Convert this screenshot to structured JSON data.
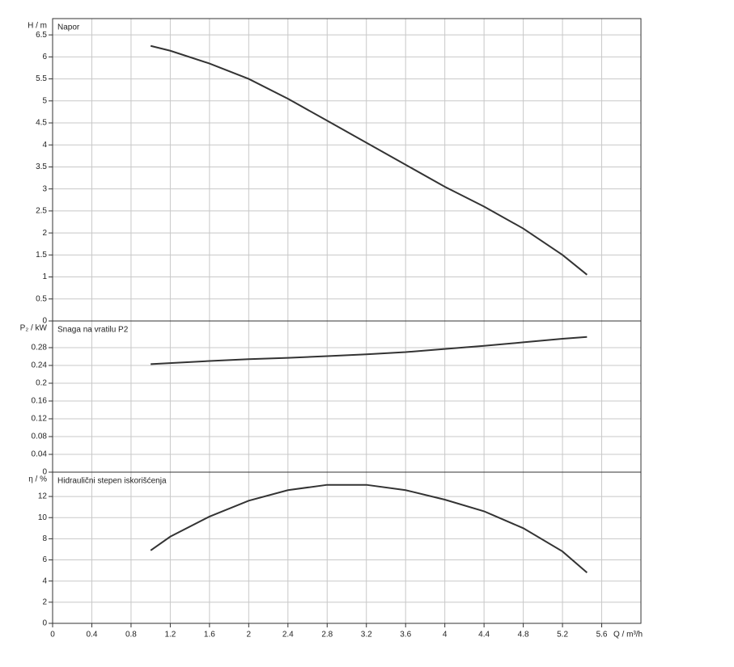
{
  "chart_data": [
    {
      "type": "line",
      "title": "Napor",
      "y_label": "H / m",
      "x": [
        1.0,
        1.2,
        1.6,
        2.0,
        2.4,
        2.8,
        3.2,
        3.6,
        4.0,
        4.4,
        4.8,
        5.2,
        5.45
      ],
      "series": [
        {
          "name": "Napor",
          "color": "#333333",
          "values": [
            6.25,
            6.14,
            5.85,
            5.5,
            5.05,
            4.55,
            4.05,
            3.55,
            3.05,
            2.6,
            2.1,
            1.5,
            1.05
          ]
        }
      ],
      "xlim": [
        0,
        6
      ],
      "xticks": [
        0,
        0.4,
        0.8,
        1.2,
        1.6,
        2,
        2.4,
        2.8,
        3.2,
        3.6,
        4,
        4.4,
        4.8,
        5.2,
        5.6
      ],
      "ylim": [
        0,
        6.87
      ],
      "yticks": [
        0,
        0.5,
        1,
        1.5,
        2,
        2.5,
        3,
        3.5,
        4,
        4.5,
        5,
        5.5,
        6,
        6.5
      ],
      "grid": true
    },
    {
      "type": "line",
      "title": "Snaga na vratilu P2",
      "y_label": "P₂ / kW",
      "x": [
        1.0,
        1.6,
        2.0,
        2.4,
        2.8,
        3.2,
        3.6,
        4.0,
        4.4,
        4.8,
        5.2,
        5.45
      ],
      "series": [
        {
          "name": "Snaga na vratilu P2",
          "color": "#333333",
          "values": [
            0.243,
            0.25,
            0.254,
            0.257,
            0.261,
            0.265,
            0.27,
            0.277,
            0.284,
            0.292,
            0.3,
            0.304
          ]
        }
      ],
      "xlim": [
        0,
        6
      ],
      "xticks": [
        0,
        0.4,
        0.8,
        1.2,
        1.6,
        2,
        2.4,
        2.8,
        3.2,
        3.6,
        4,
        4.4,
        4.8,
        5.2,
        5.6
      ],
      "ylim": [
        0,
        0.34
      ],
      "yticks": [
        0,
        0.04,
        0.08,
        0.12,
        0.16,
        0.2,
        0.24,
        0.28
      ],
      "grid": true
    },
    {
      "type": "line",
      "title": "Hidraulični stepen iskorišćenja",
      "y_label": "η / %",
      "x_label": "Q / m³/h",
      "x": [
        1.0,
        1.2,
        1.6,
        2.0,
        2.4,
        2.8,
        3.2,
        3.6,
        4.0,
        4.4,
        4.8,
        5.2,
        5.45
      ],
      "series": [
        {
          "name": "Hidraulični stepen iskorišćenja",
          "color": "#333333",
          "values": [
            6.9,
            8.2,
            10.1,
            11.6,
            12.6,
            13.1,
            13.1,
            12.6,
            11.7,
            10.6,
            9.0,
            6.8,
            4.8
          ]
        }
      ],
      "xlim": [
        0,
        6
      ],
      "xticks": [
        0,
        0.4,
        0.8,
        1.2,
        1.6,
        2,
        2.4,
        2.8,
        3.2,
        3.6,
        4,
        4.4,
        4.8,
        5.2,
        5.6
      ],
      "ylim": [
        0,
        14.3
      ],
      "yticks": [
        0,
        2,
        4,
        6,
        8,
        10,
        12
      ],
      "grid": true
    }
  ]
}
